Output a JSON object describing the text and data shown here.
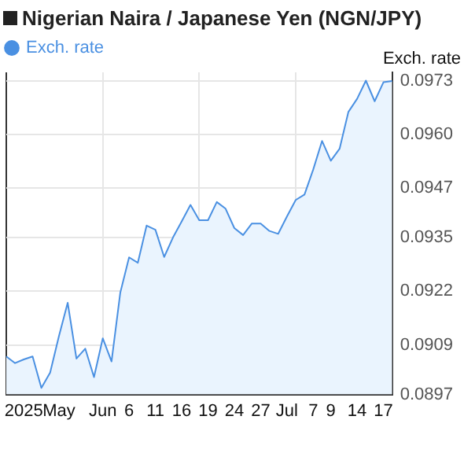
{
  "chart_data": {
    "type": "area",
    "title": "Nigerian Naira / Japanese Yen (NGN/JPY)",
    "ylabel": "Exch. rate",
    "categories": [
      null,
      null,
      "2025",
      null,
      null,
      null,
      "May",
      null,
      null,
      null,
      null,
      "Jun",
      null,
      null,
      "6",
      null,
      null,
      "11",
      null,
      null,
      "16",
      null,
      null,
      "19",
      null,
      null,
      "24",
      null,
      null,
      "27",
      null,
      null,
      "Jul",
      null,
      null,
      "7",
      null,
      "9",
      null,
      null,
      "14",
      null,
      null,
      "17",
      null
    ],
    "series": [
      {
        "name": "Exch. rate",
        "color": "#4a90e2",
        "values": [
          0.09062,
          0.09046,
          0.09055,
          0.09062,
          0.08986,
          0.09023,
          0.09111,
          0.09192,
          0.09057,
          0.09081,
          0.09012,
          0.09106,
          0.0905,
          0.09217,
          0.09302,
          0.09289,
          0.09379,
          0.09369,
          0.09303,
          0.0935,
          0.09389,
          0.09429,
          0.09392,
          0.09392,
          0.09436,
          0.0942,
          0.09373,
          0.09356,
          0.09384,
          0.09384,
          0.09366,
          0.09359,
          0.09401,
          0.09441,
          0.09454,
          0.09515,
          0.09584,
          0.09536,
          0.09565,
          0.09654,
          0.09686,
          0.0973,
          0.0968,
          0.09726,
          0.09729
        ]
      }
    ],
    "ylim": [
      0.0897,
      0.0975
    ],
    "yticks": [
      0.0897,
      0.0909,
      0.0922,
      0.0935,
      0.0947,
      {
        "value": 0.096,
        "label": "0.0960"
      },
      0.0973
    ],
    "grid": true,
    "legend": "top left",
    "marker": "none",
    "line_style": "solid"
  }
}
